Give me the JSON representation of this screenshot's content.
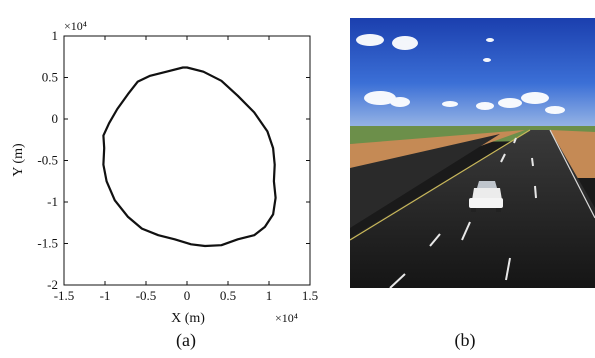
{
  "chart_data": {
    "type": "line",
    "xlabel": "X (m)",
    "ylabel": "Y (m)",
    "x_exponent_label": "×10⁴",
    "y_exponent_label": "×10⁴",
    "xlim": [
      -1.5,
      1.5
    ],
    "ylim": [
      -2,
      1
    ],
    "x_ticks": [
      "-1.5",
      "-1",
      "-0.5",
      "0",
      "0.5",
      "1",
      "1.5"
    ],
    "y_ticks": [
      "1",
      "0.5",
      "0",
      "-0.5",
      "-1",
      "-1.5",
      "-2"
    ],
    "x_tick_values": [
      -1.5,
      -1,
      -0.5,
      0,
      0.5,
      1,
      1.5
    ],
    "y_tick_values": [
      1,
      0.5,
      0,
      -0.5,
      -1,
      -1.5,
      -2
    ],
    "grid": false,
    "series": [
      {
        "x": [
          0.0,
          0.2,
          0.42,
          0.62,
          0.82,
          0.98,
          1.05,
          1.07,
          1.06,
          1.08,
          1.05,
          0.95,
          0.82,
          0.62,
          0.42,
          0.22,
          0.05,
          -0.15,
          -0.35,
          -0.55,
          -0.72,
          -0.88,
          -0.98,
          -1.02,
          -1.01,
          -1.02,
          -0.95,
          -0.85,
          -0.72,
          -0.6,
          -0.45,
          -0.25,
          -0.05,
          0.0
        ],
        "y": [
          0.62,
          0.57,
          0.46,
          0.28,
          0.08,
          -0.15,
          -0.35,
          -0.55,
          -0.75,
          -0.95,
          -1.15,
          -1.3,
          -1.4,
          -1.45,
          -1.52,
          -1.53,
          -1.51,
          -1.45,
          -1.4,
          -1.32,
          -1.18,
          -0.98,
          -0.75,
          -0.55,
          -0.35,
          -0.2,
          -0.05,
          0.12,
          0.3,
          0.45,
          0.52,
          0.57,
          0.62,
          0.62
        ]
      }
    ]
  },
  "captions": {
    "a": "(a)",
    "b": "(b)"
  }
}
